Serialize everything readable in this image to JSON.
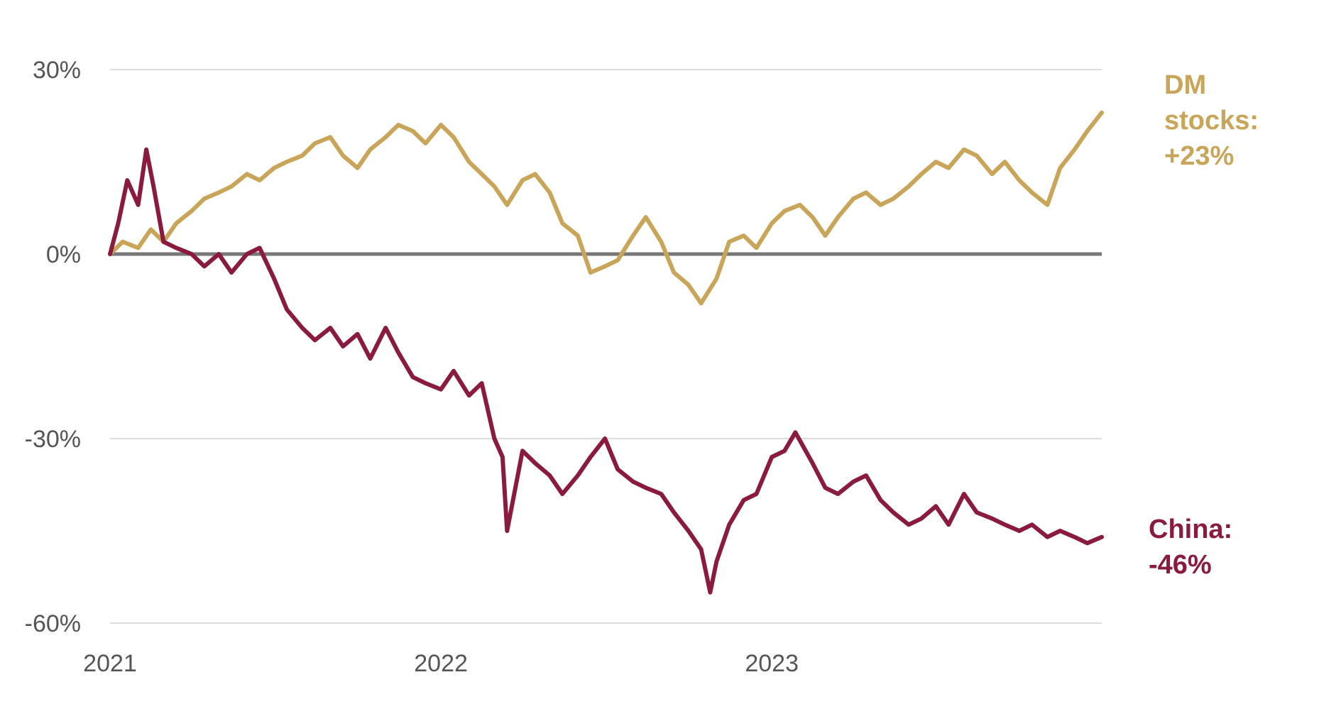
{
  "chart_data": {
    "type": "line",
    "x_range": [
      "2021-01-01",
      "2023-12-31"
    ],
    "x_ticks": [
      "2021",
      "2022",
      "2023"
    ],
    "y_ticks": [
      "30%",
      "0%",
      "-30%",
      "-60%"
    ],
    "ylim": [
      -60,
      30
    ],
    "grid": true,
    "zero_line": true,
    "series": [
      {
        "name": "DM stocks",
        "label_lines": [
          "DM",
          "stocks:",
          "+23%"
        ],
        "color": "#C9A55A",
        "x": [
          "2021-01-01",
          "2021-01-15",
          "2021-02-01",
          "2021-02-15",
          "2021-03-01",
          "2021-03-15",
          "2021-04-01",
          "2021-04-15",
          "2021-05-01",
          "2021-05-15",
          "2021-06-01",
          "2021-06-15",
          "2021-07-01",
          "2021-07-15",
          "2021-08-01",
          "2021-08-15",
          "2021-09-01",
          "2021-09-15",
          "2021-10-01",
          "2021-10-15",
          "2021-11-01",
          "2021-11-15",
          "2021-12-01",
          "2021-12-15",
          "2022-01-01",
          "2022-01-15",
          "2022-02-01",
          "2022-02-15",
          "2022-03-01",
          "2022-03-15",
          "2022-04-01",
          "2022-04-15",
          "2022-05-01",
          "2022-05-15",
          "2022-06-01",
          "2022-06-15",
          "2022-07-01",
          "2022-07-15",
          "2022-08-01",
          "2022-08-15",
          "2022-09-01",
          "2022-09-15",
          "2022-10-01",
          "2022-10-15",
          "2022-11-01",
          "2022-11-15",
          "2022-12-01",
          "2022-12-15",
          "2023-01-01",
          "2023-01-15",
          "2023-02-01",
          "2023-02-15",
          "2023-03-01",
          "2023-03-15",
          "2023-04-01",
          "2023-04-15",
          "2023-05-01",
          "2023-05-15",
          "2023-06-01",
          "2023-06-15",
          "2023-07-01",
          "2023-07-15",
          "2023-08-01",
          "2023-08-15",
          "2023-09-01",
          "2023-09-15",
          "2023-10-01",
          "2023-10-15",
          "2023-11-01",
          "2023-11-15",
          "2023-12-01",
          "2023-12-15",
          "2023-12-31"
        ],
        "values": [
          0,
          2,
          1,
          4,
          2,
          5,
          7,
          9,
          10,
          11,
          13,
          12,
          14,
          15,
          16,
          18,
          19,
          16,
          14,
          17,
          19,
          21,
          20,
          18,
          21,
          19,
          15,
          13,
          11,
          8,
          12,
          13,
          10,
          5,
          3,
          -3,
          -2,
          -1,
          3,
          6,
          2,
          -3,
          -5,
          -8,
          -4,
          2,
          3,
          1,
          5,
          7,
          8,
          6,
          3,
          6,
          9,
          10,
          8,
          9,
          11,
          13,
          15,
          14,
          17,
          16,
          13,
          15,
          12,
          10,
          8,
          14,
          17,
          20,
          23
        ]
      },
      {
        "name": "China",
        "label_lines": [
          "China:",
          "-46%"
        ],
        "color": "#8B1A3F",
        "x": [
          "2021-01-01",
          "2021-01-10",
          "2021-01-20",
          "2021-02-01",
          "2021-02-10",
          "2021-02-18",
          "2021-03-01",
          "2021-03-15",
          "2021-04-01",
          "2021-04-15",
          "2021-05-01",
          "2021-05-15",
          "2021-06-01",
          "2021-06-15",
          "2021-07-01",
          "2021-07-15",
          "2021-08-01",
          "2021-08-15",
          "2021-09-01",
          "2021-09-15",
          "2021-10-01",
          "2021-10-15",
          "2021-11-01",
          "2021-11-15",
          "2021-12-01",
          "2021-12-15",
          "2022-01-01",
          "2022-01-15",
          "2022-02-01",
          "2022-02-15",
          "2022-03-01",
          "2022-03-10",
          "2022-03-15",
          "2022-04-01",
          "2022-04-15",
          "2022-05-01",
          "2022-05-15",
          "2022-06-01",
          "2022-06-15",
          "2022-07-01",
          "2022-07-15",
          "2022-08-01",
          "2022-08-15",
          "2022-09-01",
          "2022-09-15",
          "2022-10-01",
          "2022-10-15",
          "2022-10-25",
          "2022-11-01",
          "2022-11-15",
          "2022-12-01",
          "2022-12-15",
          "2023-01-01",
          "2023-01-15",
          "2023-01-27",
          "2023-02-15",
          "2023-03-01",
          "2023-03-15",
          "2023-04-01",
          "2023-04-15",
          "2023-05-01",
          "2023-05-15",
          "2023-06-01",
          "2023-06-15",
          "2023-07-01",
          "2023-07-15",
          "2023-08-01",
          "2023-08-15",
          "2023-09-01",
          "2023-09-15",
          "2023-10-01",
          "2023-10-15",
          "2023-11-01",
          "2023-11-15",
          "2023-12-01",
          "2023-12-15",
          "2023-12-31"
        ],
        "values": [
          0,
          5,
          12,
          8,
          17,
          11,
          2,
          1,
          0,
          -2,
          0,
          -3,
          0,
          1,
          -4,
          -9,
          -12,
          -14,
          -12,
          -15,
          -13,
          -17,
          -12,
          -16,
          -20,
          -21,
          -22,
          -19,
          -23,
          -21,
          -30,
          -33,
          -45,
          -32,
          -34,
          -36,
          -39,
          -36,
          -33,
          -30,
          -35,
          -37,
          -38,
          -39,
          -42,
          -45,
          -48,
          -55,
          -50,
          -44,
          -40,
          -39,
          -33,
          -32,
          -29,
          -34,
          -38,
          -39,
          -37,
          -36,
          -40,
          -42,
          -44,
          -43,
          -41,
          -44,
          -39,
          -42,
          -43,
          -44,
          -45,
          -44,
          -46,
          -45,
          -46,
          -47,
          -46
        ]
      }
    ]
  }
}
